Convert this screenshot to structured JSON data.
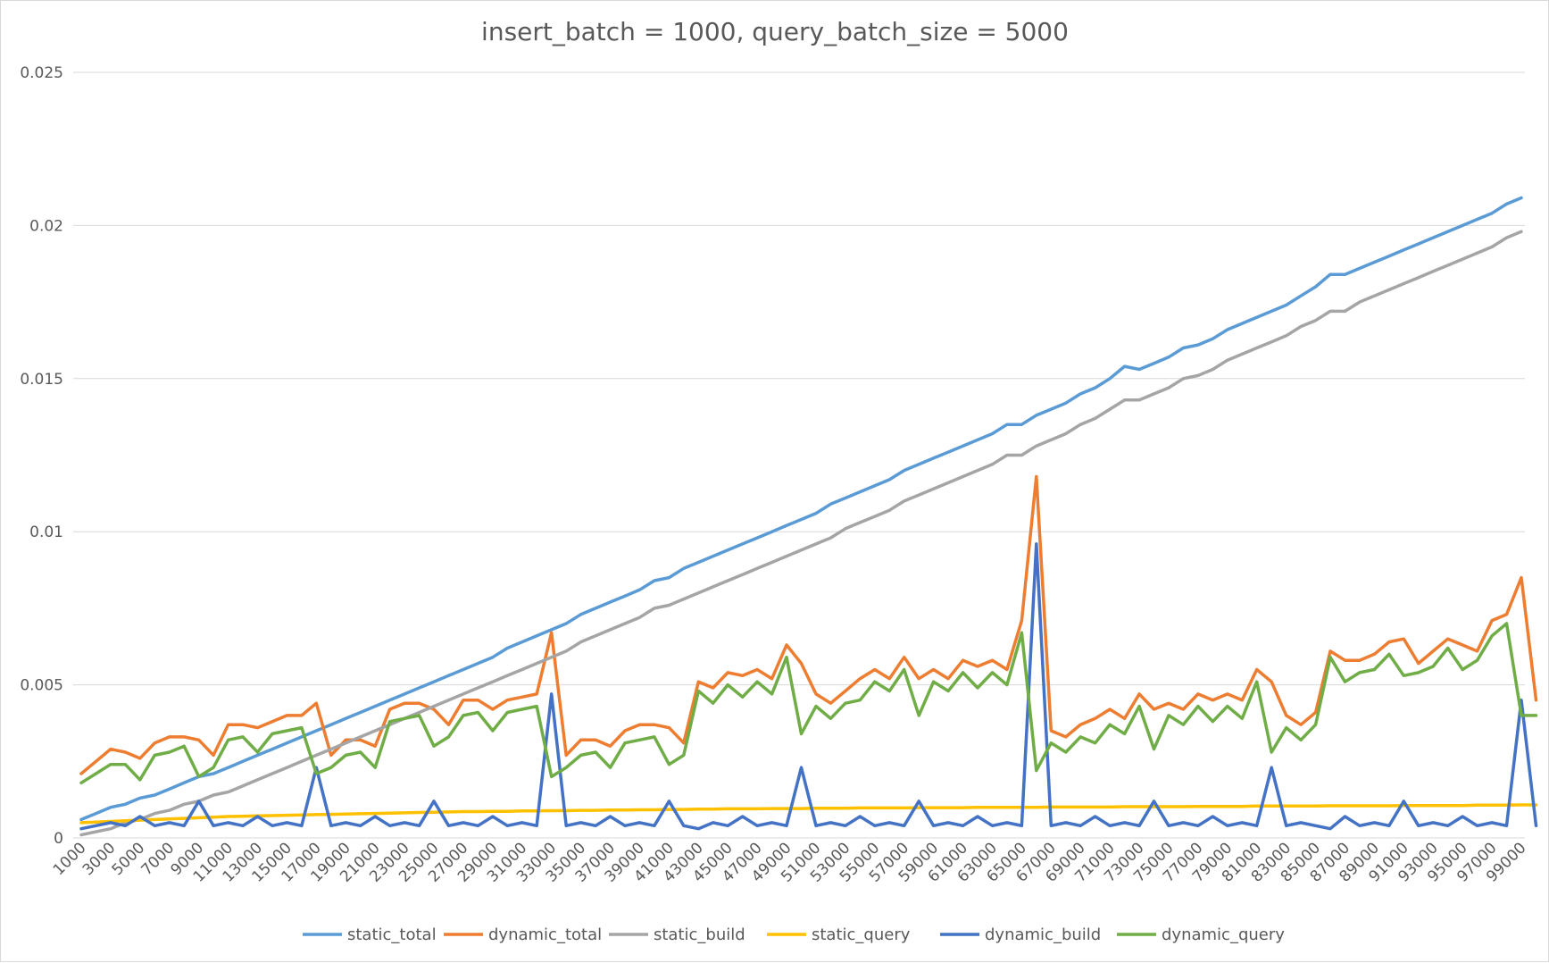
{
  "chart_data": {
    "type": "line",
    "title": "insert_batch = 1000, query_batch_size = 5000",
    "xlabel": "",
    "ylabel": "",
    "ylim": [
      0,
      0.025
    ],
    "yticks": [
      "0",
      "0.005",
      "0.01",
      "0.015",
      "0.02",
      "0.025"
    ],
    "xtick_labels": [
      "1000",
      "3000",
      "5000",
      "7000",
      "9000",
      "11000",
      "13000",
      "15000",
      "17000",
      "19000",
      "21000",
      "23000",
      "25000",
      "27000",
      "29000",
      "31000",
      "33000",
      "35000",
      "37000",
      "39000",
      "41000",
      "43000",
      "45000",
      "47000",
      "49000",
      "51000",
      "53000",
      "55000",
      "57000",
      "59000",
      "61000",
      "63000",
      "65000",
      "67000",
      "69000",
      "71000",
      "73000",
      "75000",
      "77000",
      "79000",
      "81000",
      "83000",
      "85000",
      "87000",
      "89000",
      "91000",
      "93000",
      "95000",
      "97000",
      "99000"
    ],
    "x_start": 1000,
    "x_step": 1000,
    "grid": true,
    "legend_position": "bottom",
    "series": [
      {
        "name": "static_total",
        "color": "#5B9BD5",
        "values": [
          0.0006,
          0.0008,
          0.001,
          0.0011,
          0.0013,
          0.0014,
          0.0016,
          0.0018,
          0.002,
          0.0021,
          0.0023,
          0.0025,
          0.0027,
          0.0029,
          0.0031,
          0.0033,
          0.0035,
          0.0037,
          0.0039,
          0.0041,
          0.0043,
          0.0045,
          0.0047,
          0.0049,
          0.0051,
          0.0053,
          0.0055,
          0.0057,
          0.0059,
          0.0062,
          0.0064,
          0.0066,
          0.0068,
          0.007,
          0.0073,
          0.0075,
          0.0077,
          0.0079,
          0.0081,
          0.0084,
          0.0085,
          0.0088,
          0.009,
          0.0092,
          0.0094,
          0.0096,
          0.0098,
          0.01,
          0.0102,
          0.0104,
          0.0106,
          0.0109,
          0.0111,
          0.0113,
          0.0115,
          0.0117,
          0.012,
          0.0122,
          0.0124,
          0.0126,
          0.0128,
          0.013,
          0.0132,
          0.0135,
          0.0135,
          0.0138,
          0.014,
          0.0142,
          0.0145,
          0.0147,
          0.015,
          0.0154,
          0.0153,
          0.0155,
          0.0157,
          0.016,
          0.0161,
          0.0163,
          0.0166,
          0.0168,
          0.017,
          0.0172,
          0.0174,
          0.0177,
          0.018,
          0.0184,
          0.0184,
          0.0186,
          0.0188,
          0.019,
          0.0192,
          0.0194,
          0.0196,
          0.0198,
          0.02,
          0.0202,
          0.0204,
          0.0207,
          0.0209
        ]
      },
      {
        "name": "dynamic_total",
        "color": "#ED7D31",
        "values": [
          0.0021,
          0.0025,
          0.0029,
          0.0028,
          0.0026,
          0.0031,
          0.0033,
          0.0033,
          0.0032,
          0.0027,
          0.0037,
          0.0037,
          0.0036,
          0.0038,
          0.004,
          0.004,
          0.0044,
          0.0027,
          0.0032,
          0.0032,
          0.003,
          0.0042,
          0.0044,
          0.0044,
          0.0042,
          0.0037,
          0.0045,
          0.0045,
          0.0042,
          0.0045,
          0.0046,
          0.0047,
          0.0067,
          0.0027,
          0.0032,
          0.0032,
          0.003,
          0.0035,
          0.0037,
          0.0037,
          0.0036,
          0.0031,
          0.0051,
          0.0049,
          0.0054,
          0.0053,
          0.0055,
          0.0052,
          0.0063,
          0.0057,
          0.0047,
          0.0044,
          0.0048,
          0.0052,
          0.0055,
          0.0052,
          0.0059,
          0.0052,
          0.0055,
          0.0052,
          0.0058,
          0.0056,
          0.0058,
          0.0055,
          0.0071,
          0.0118,
          0.0035,
          0.0033,
          0.0037,
          0.0039,
          0.0042,
          0.0039,
          0.0047,
          0.0042,
          0.0044,
          0.0042,
          0.0047,
          0.0045,
          0.0047,
          0.0045,
          0.0055,
          0.0051,
          0.004,
          0.0037,
          0.0041,
          0.0061,
          0.0058,
          0.0058,
          0.006,
          0.0064,
          0.0065,
          0.0057,
          0.0061,
          0.0065,
          0.0063,
          0.0061,
          0.0071,
          0.0073,
          0.0085,
          0.0045
        ]
      },
      {
        "name": "static_build",
        "color": "#A5A5A5",
        "values": [
          0.0001,
          0.0002,
          0.0003,
          0.0005,
          0.0006,
          0.0008,
          0.0009,
          0.0011,
          0.0012,
          0.0014,
          0.0015,
          0.0017,
          0.0019,
          0.0021,
          0.0023,
          0.0025,
          0.0027,
          0.0029,
          0.0031,
          0.0033,
          0.0035,
          0.0037,
          0.0039,
          0.0041,
          0.0043,
          0.0045,
          0.0047,
          0.0049,
          0.0051,
          0.0053,
          0.0055,
          0.0057,
          0.0059,
          0.0061,
          0.0064,
          0.0066,
          0.0068,
          0.007,
          0.0072,
          0.0075,
          0.0076,
          0.0078,
          0.008,
          0.0082,
          0.0084,
          0.0086,
          0.0088,
          0.009,
          0.0092,
          0.0094,
          0.0096,
          0.0098,
          0.0101,
          0.0103,
          0.0105,
          0.0107,
          0.011,
          0.0112,
          0.0114,
          0.0116,
          0.0118,
          0.012,
          0.0122,
          0.0125,
          0.0125,
          0.0128,
          0.013,
          0.0132,
          0.0135,
          0.0137,
          0.014,
          0.0143,
          0.0143,
          0.0145,
          0.0147,
          0.015,
          0.0151,
          0.0153,
          0.0156,
          0.0158,
          0.016,
          0.0162,
          0.0164,
          0.0167,
          0.0169,
          0.0172,
          0.0172,
          0.0175,
          0.0177,
          0.0179,
          0.0181,
          0.0183,
          0.0185,
          0.0187,
          0.0189,
          0.0191,
          0.0193,
          0.0196,
          0.0198
        ]
      },
      {
        "name": "static_query",
        "color": "#FFC000",
        "values": [
          0.0005,
          0.00052,
          0.00054,
          0.00056,
          0.00058,
          0.0006,
          0.00062,
          0.00064,
          0.00066,
          0.00068,
          0.0007,
          0.00071,
          0.00072,
          0.00073,
          0.00074,
          0.00075,
          0.00076,
          0.00077,
          0.00078,
          0.00079,
          0.0008,
          0.00081,
          0.00082,
          0.00083,
          0.00084,
          0.00085,
          0.00086,
          0.00086,
          0.00087,
          0.00087,
          0.00088,
          0.00088,
          0.00089,
          0.00089,
          0.0009,
          0.0009,
          0.00091,
          0.00091,
          0.00092,
          0.00092,
          0.00093,
          0.00093,
          0.00094,
          0.00094,
          0.00095,
          0.00095,
          0.00095,
          0.00096,
          0.00096,
          0.00096,
          0.00097,
          0.00097,
          0.00097,
          0.00098,
          0.00098,
          0.00098,
          0.00098,
          0.00099,
          0.00099,
          0.00099,
          0.00099,
          0.001,
          0.001,
          0.001,
          0.001,
          0.001,
          0.00101,
          0.00101,
          0.00101,
          0.00101,
          0.00101,
          0.00102,
          0.00102,
          0.00102,
          0.00102,
          0.00102,
          0.00103,
          0.00103,
          0.00103,
          0.00103,
          0.00104,
          0.00104,
          0.00104,
          0.00104,
          0.00104,
          0.00105,
          0.00105,
          0.00105,
          0.00105,
          0.00105,
          0.00106,
          0.00106,
          0.00106,
          0.00106,
          0.00106,
          0.00107,
          0.00107,
          0.00107,
          0.00108,
          0.00108
        ]
      },
      {
        "name": "dynamic_build",
        "color": "#4472C4",
        "values": [
          0.0003,
          0.0004,
          0.0005,
          0.0004,
          0.0007,
          0.0004,
          0.0005,
          0.0004,
          0.0012,
          0.0004,
          0.0005,
          0.0004,
          0.0007,
          0.0004,
          0.0005,
          0.0004,
          0.0023,
          0.0004,
          0.0005,
          0.0004,
          0.0007,
          0.0004,
          0.0005,
          0.0004,
          0.0012,
          0.0004,
          0.0005,
          0.0004,
          0.0007,
          0.0004,
          0.0005,
          0.0004,
          0.0047,
          0.0004,
          0.0005,
          0.0004,
          0.0007,
          0.0004,
          0.0005,
          0.0004,
          0.0012,
          0.0004,
          0.0003,
          0.0005,
          0.0004,
          0.0007,
          0.0004,
          0.0005,
          0.0004,
          0.0023,
          0.0004,
          0.0005,
          0.0004,
          0.0007,
          0.0004,
          0.0005,
          0.0004,
          0.0012,
          0.0004,
          0.0005,
          0.0004,
          0.0007,
          0.0004,
          0.0005,
          0.0004,
          0.0096,
          0.0004,
          0.0005,
          0.0004,
          0.0007,
          0.0004,
          0.0005,
          0.0004,
          0.0012,
          0.0004,
          0.0005,
          0.0004,
          0.0007,
          0.0004,
          0.0005,
          0.0004,
          0.0023,
          0.0004,
          0.0005,
          0.0004,
          0.0003,
          0.0007,
          0.0004,
          0.0005,
          0.0004,
          0.0012,
          0.0004,
          0.0005,
          0.0004,
          0.0007,
          0.0004,
          0.0005,
          0.0004,
          0.0045,
          0.0004
        ]
      },
      {
        "name": "dynamic_query",
        "color": "#70AD47",
        "values": [
          0.0018,
          0.0021,
          0.0024,
          0.0024,
          0.0019,
          0.0027,
          0.0028,
          0.003,
          0.002,
          0.0023,
          0.0032,
          0.0033,
          0.0028,
          0.0034,
          0.0035,
          0.0036,
          0.0021,
          0.0023,
          0.0027,
          0.0028,
          0.0023,
          0.0038,
          0.0039,
          0.004,
          0.003,
          0.0033,
          0.004,
          0.0041,
          0.0035,
          0.0041,
          0.0042,
          0.0043,
          0.002,
          0.0023,
          0.0027,
          0.0028,
          0.0023,
          0.0031,
          0.0032,
          0.0033,
          0.0024,
          0.0027,
          0.0048,
          0.0044,
          0.005,
          0.0046,
          0.0051,
          0.0047,
          0.0059,
          0.0034,
          0.0043,
          0.0039,
          0.0044,
          0.0045,
          0.0051,
          0.0048,
          0.0055,
          0.004,
          0.0051,
          0.0048,
          0.0054,
          0.0049,
          0.0054,
          0.005,
          0.0067,
          0.0022,
          0.0031,
          0.0028,
          0.0033,
          0.0031,
          0.0037,
          0.0034,
          0.0043,
          0.0029,
          0.004,
          0.0037,
          0.0043,
          0.0038,
          0.0043,
          0.0039,
          0.0051,
          0.0028,
          0.0036,
          0.0032,
          0.0037,
          0.0059,
          0.0051,
          0.0054,
          0.0055,
          0.006,
          0.0053,
          0.0054,
          0.0056,
          0.0062,
          0.0055,
          0.0058,
          0.0066,
          0.007,
          0.004,
          0.004
        ]
      }
    ]
  }
}
